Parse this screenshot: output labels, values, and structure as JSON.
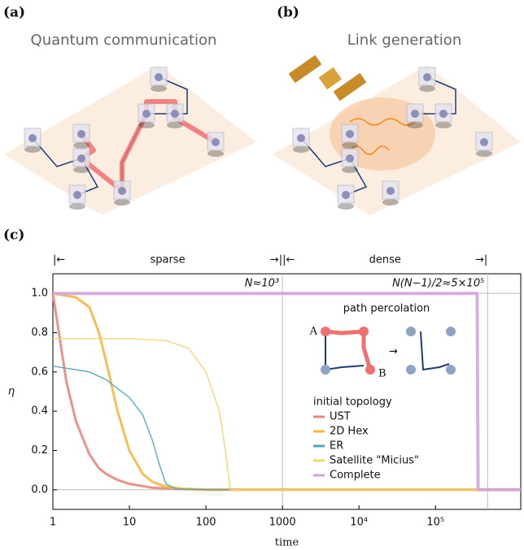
{
  "panels": [
    {
      "label": "(a)",
      "title": "Quantum communication"
    },
    {
      "label": "(b)",
      "title": "Link generation"
    }
  ],
  "chart_data": {
    "type": "line",
    "panel_label": "(c)",
    "x_label": "time",
    "y_label": "η",
    "log_x": true,
    "xlim": [
      1,
      1300000
    ],
    "ylim": [
      -0.1,
      1.1
    ],
    "xticks": [
      1,
      10,
      100,
      1000,
      {
        "value": 10000,
        "label": "10⁴"
      },
      {
        "value": 100000,
        "label": "10⁵"
      }
    ],
    "yticks": [
      {
        "value": 0,
        "label": "0.0"
      },
      0.2,
      0.4,
      0.6,
      0.8,
      {
        "value": 1,
        "label": "1.0"
      }
    ],
    "hlines": [
      0,
      1
    ],
    "vlines": [
      1000,
      480000
    ],
    "annotations": [
      "sparse",
      "dense",
      "N≈10³",
      "N(N−1)/2≈5×10⁵"
    ],
    "inset": {
      "title": "path percolation",
      "labels": [
        "A",
        "B"
      ]
    },
    "legend_title": "initial topology",
    "legend": "center right",
    "series": [
      {
        "name": "UST",
        "color": "#e8887c",
        "width": 3,
        "x": [
          1,
          1.5,
          2,
          3,
          4,
          5,
          7,
          10,
          20,
          50,
          100,
          1300000
        ],
        "values": [
          1.0,
          0.55,
          0.35,
          0.18,
          0.11,
          0.08,
          0.05,
          0.03,
          0.01,
          0.003,
          0,
          0
        ]
      },
      {
        "name": "2D Hex",
        "color": "#f5b742",
        "width": 3,
        "x": [
          1,
          2,
          3,
          4,
          5,
          7,
          10,
          15,
          20,
          30,
          50,
          100,
          1300000
        ],
        "values": [
          1.0,
          0.98,
          0.93,
          0.8,
          0.65,
          0.4,
          0.2,
          0.08,
          0.04,
          0.015,
          0.005,
          0,
          0
        ]
      },
      {
        "name": "ER",
        "color": "#4fa7b8",
        "width": 1.5,
        "x": [
          1,
          3,
          5,
          10,
          15,
          20,
          25,
          30,
          40,
          100,
          1300000
        ],
        "values": [
          0.63,
          0.6,
          0.56,
          0.47,
          0.38,
          0.25,
          0.12,
          0.03,
          0.005,
          0,
          0
        ]
      },
      {
        "name": "Satellite \"Micius\"",
        "color": "#f2d66e",
        "width": 1.5,
        "x": [
          1,
          10,
          30,
          60,
          100,
          150,
          180,
          200,
          210,
          1300000
        ],
        "values": [
          0.77,
          0.77,
          0.76,
          0.72,
          0.6,
          0.4,
          0.2,
          0.05,
          0,
          0
        ]
      },
      {
        "name": "Complete",
        "color": "#cfa6dc",
        "width": 4,
        "x": [
          1,
          350000,
          360000,
          1300000
        ],
        "values": [
          1.0,
          1.0,
          0,
          0
        ]
      }
    ]
  }
}
